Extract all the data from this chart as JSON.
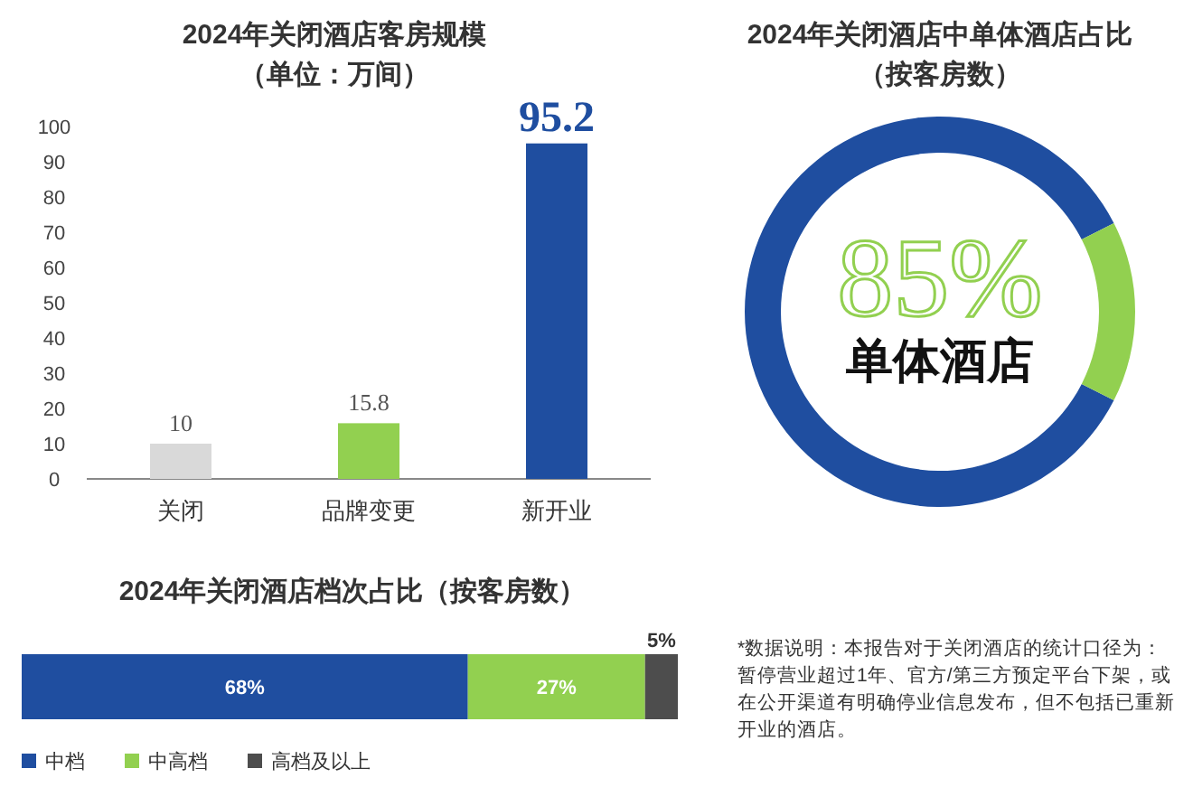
{
  "chart_data": [
    {
      "type": "bar",
      "title": "2024年关闭酒店客房规模",
      "subtitle": "（单位：万间）",
      "categories": [
        "关闭",
        "品牌变更",
        "新开业"
      ],
      "values": [
        10,
        15.8,
        95.2
      ],
      "colors": [
        "#d9d9d9",
        "#92d050",
        "#1f4ea0"
      ],
      "ylim": [
        0,
        100
      ],
      "yticks": [
        0,
        10,
        20,
        30,
        40,
        50,
        60,
        70,
        80,
        90,
        100
      ],
      "data_labels": true
    },
    {
      "type": "donut",
      "title": "2024年关闭酒店中单体酒店占比",
      "subtitle": "（按客房数）",
      "categories": [
        "单体酒店",
        null
      ],
      "values": [
        85,
        15
      ],
      "value_labels": [
        "85%",
        null
      ],
      "colors": [
        "#1f4ea0",
        "#92d050"
      ]
    },
    {
      "type": "bar",
      "orientation": "horizontal",
      "stacked": true,
      "title": "2024年关闭酒店档次占比（按客房数）",
      "categories": [
        null
      ],
      "legend": "bottom",
      "series": [
        {
          "name": "中档",
          "color": "#1f4ea0",
          "values": [
            68
          ],
          "value_labels": [
            "68%"
          ]
        },
        {
          "name": "中高档",
          "color": "#92d050",
          "values": [
            27
          ],
          "value_labels": [
            "27%"
          ]
        },
        {
          "name": "高档及以上",
          "color": "#4d4d4d",
          "values": [
            5
          ],
          "value_labels": [
            "5%"
          ]
        }
      ],
      "annotations": [
        "*数据说明：本报告对于关闭酒店的统计口径为：暂停营业超过1年、官方/第三方预定平台下架，或在公开渠道有明确停业信息发布，但不包括已重新开业的酒店。"
      ]
    }
  ]
}
